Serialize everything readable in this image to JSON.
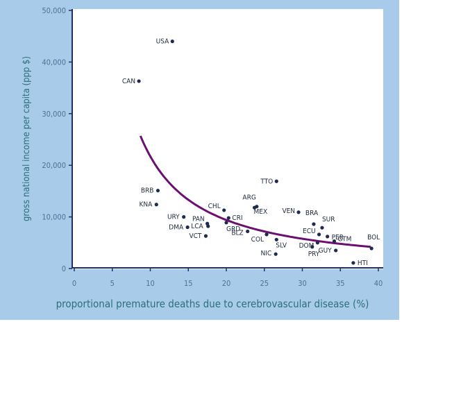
{
  "chart_data": {
    "type": "scatter",
    "xlabel": "proportional premature deaths due to cerebrovascular disease (%)",
    "ylabel": "gross national income per capita (ppp $)",
    "xlim": [
      0,
      40
    ],
    "ylim": [
      0,
      50000
    ],
    "x_ticks": [
      "0",
      "5",
      "10",
      "15",
      "20",
      "25",
      "30",
      "35",
      "40"
    ],
    "y_ticks": [
      "0",
      "10,000",
      "20,000",
      "30,000",
      "40,000",
      "50,000"
    ],
    "colors": {
      "panel": "#a9cbea",
      "plot_bg": "#ffffff",
      "axis": "#1f2f6b",
      "point": "#1e2a4e",
      "trend": "#6b1070"
    },
    "points": [
      {
        "label": "USA",
        "x": 12.9,
        "y": 44000
      },
      {
        "label": "CAN",
        "x": 8.5,
        "y": 36300
      },
      {
        "label": "TTO",
        "x": 26.6,
        "y": 16900
      },
      {
        "label": "BRB",
        "x": 11.0,
        "y": 15100
      },
      {
        "label": "KNA",
        "x": 10.8,
        "y": 12400
      },
      {
        "label": "ARG",
        "x": 24.0,
        "y": 12000
      },
      {
        "label": "MEX",
        "x": 23.7,
        "y": 11800
      },
      {
        "label": "CHL",
        "x": 19.7,
        "y": 11300
      },
      {
        "label": "VEN",
        "x": 29.5,
        "y": 10900
      },
      {
        "label": "CRI",
        "x": 20.3,
        "y": 9800
      },
      {
        "label": "URY",
        "x": 14.4,
        "y": 10000
      },
      {
        "label": "PAN",
        "x": 17.5,
        "y": 8700
      },
      {
        "label": "BRA",
        "x": 31.5,
        "y": 8600
      },
      {
        "label": "SUR",
        "x": 32.6,
        "y": 7900
      },
      {
        "label": "DMA",
        "x": 14.9,
        "y": 8000
      },
      {
        "label": "LCA",
        "x": 17.6,
        "y": 8200
      },
      {
        "label": "GRD",
        "x": 20.0,
        "y": 8900
      },
      {
        "label": "BLZ",
        "x": 22.8,
        "y": 7200
      },
      {
        "label": "VCT",
        "x": 17.3,
        "y": 6300
      },
      {
        "label": "ECU",
        "x": 32.2,
        "y": 6600
      },
      {
        "label": "PER",
        "x": 33.3,
        "y": 6200
      },
      {
        "label": "COL",
        "x": 25.3,
        "y": 6600
      },
      {
        "label": "SLV",
        "x": 26.6,
        "y": 5600
      },
      {
        "label": "GTM",
        "x": 34.2,
        "y": 5300
      },
      {
        "label": "BOL",
        "x": 39.1,
        "y": 3900
      },
      {
        "label": "DOM",
        "x": 32.0,
        "y": 5000
      },
      {
        "label": "PRY",
        "x": 31.3,
        "y": 4200
      },
      {
        "label": "GUY",
        "x": 34.4,
        "y": 3500
      },
      {
        "label": "NIC",
        "x": 26.5,
        "y": 2800
      },
      {
        "label": "HTI",
        "x": 36.7,
        "y": 1100
      }
    ],
    "trend": {
      "type": "power",
      "x_range": [
        8.7,
        39.0
      ],
      "y_at_start": 25700,
      "y_at_end": 4200
    }
  }
}
